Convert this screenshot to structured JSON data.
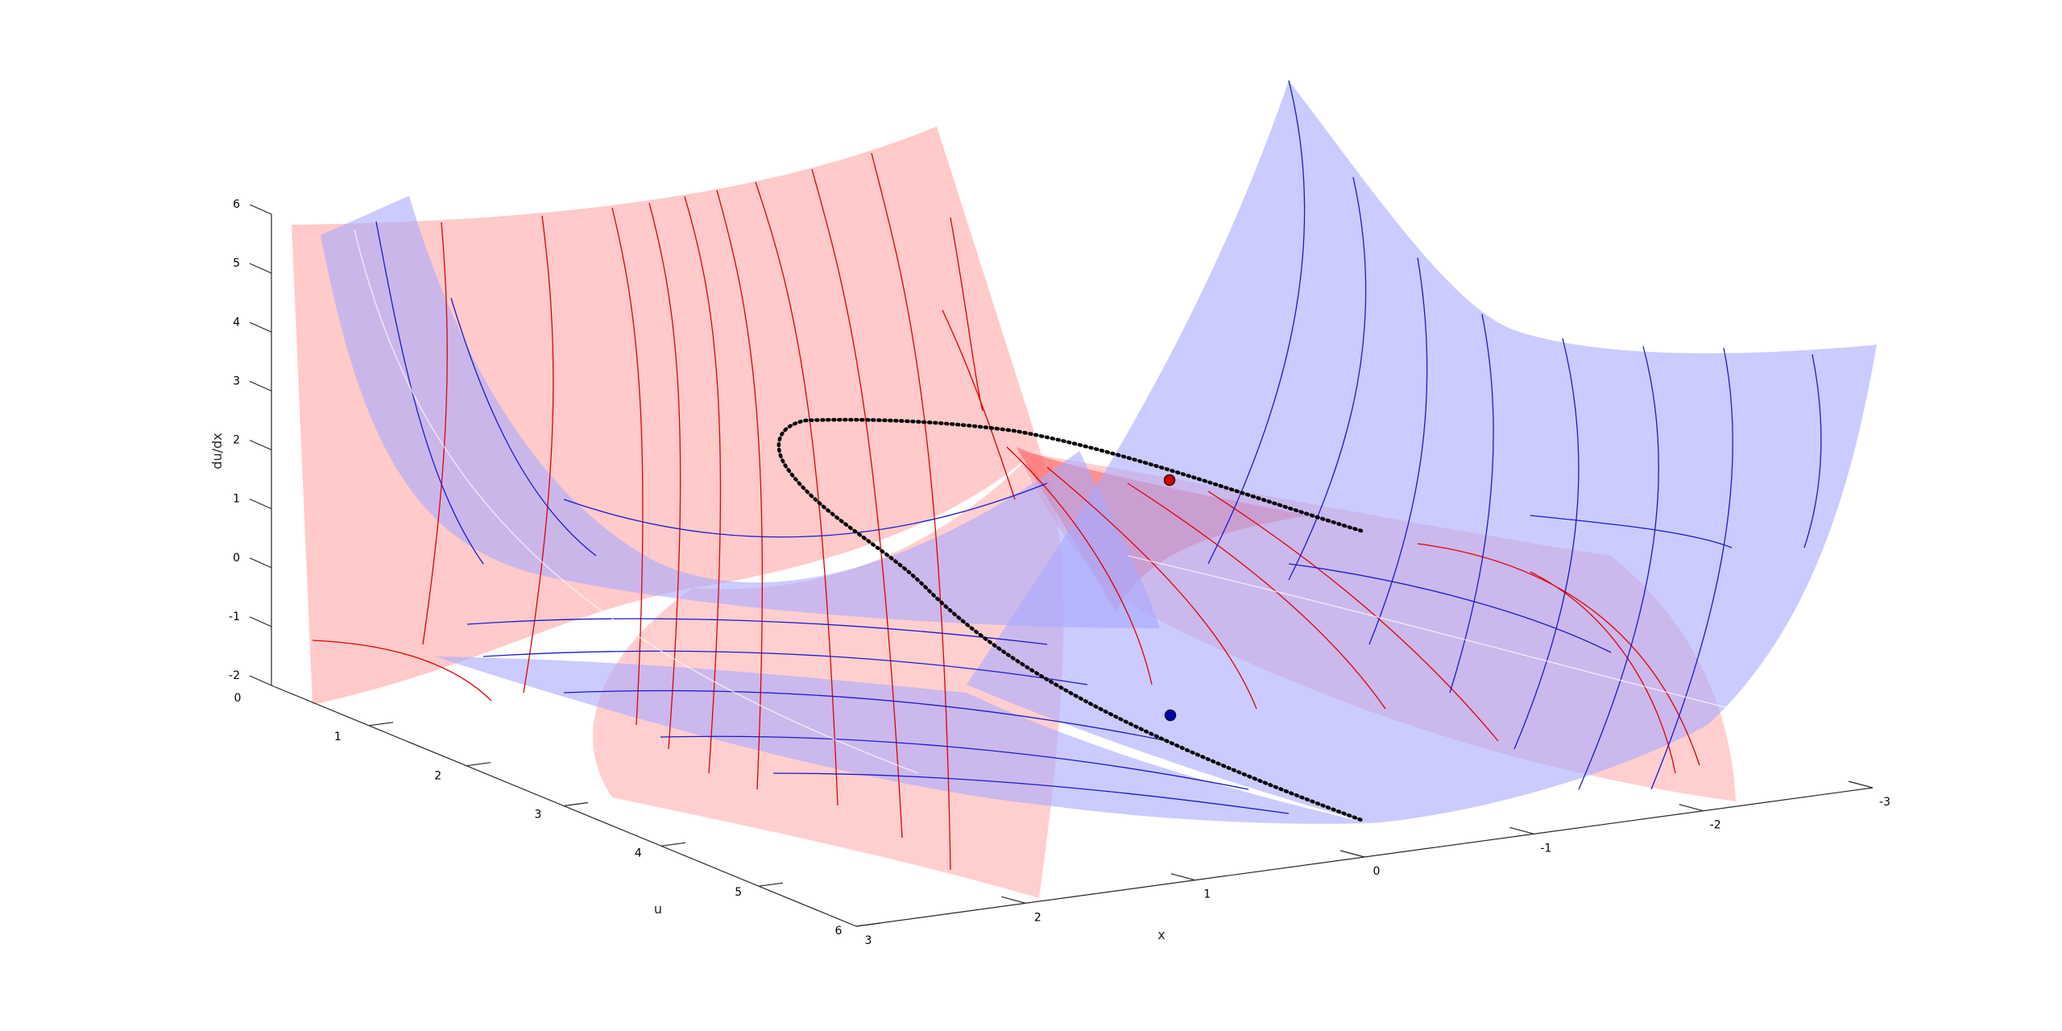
{
  "chart_data": {
    "type": "surface3d",
    "title": "",
    "axes": {
      "x": {
        "label": "x",
        "lim": [
          -3,
          3
        ],
        "ticks": [
          3,
          2,
          1,
          0,
          -1,
          -2,
          -3
        ]
      },
      "u": {
        "label": "u",
        "lim": [
          0,
          6
        ],
        "ticks": [
          0,
          1,
          2,
          3,
          4,
          5,
          6
        ]
      },
      "z": {
        "label": "du/dx",
        "lim": [
          -2,
          6
        ],
        "ticks": [
          -2,
          -1,
          0,
          1,
          2,
          3,
          4,
          5,
          6
        ]
      }
    },
    "surfaces": [
      {
        "id": "red-surface",
        "fill": "#ff9f9f",
        "contour_color": "#e00000"
      },
      {
        "id": "blue-surface",
        "fill": "#a8a8ff",
        "contour_color": "#1a1acc"
      }
    ],
    "trajectory": {
      "color": "#000000",
      "style": "dotted"
    },
    "markers": [
      {
        "id": "red-point",
        "color": "#cc0000",
        "u": 5.6,
        "x": 0.1,
        "z": 1.8
      },
      {
        "id": "blue-point",
        "color": "#0000aa",
        "u": 3.6,
        "x": 0.1,
        "z": 0.2
      }
    ],
    "grid": false,
    "legend": "none"
  }
}
